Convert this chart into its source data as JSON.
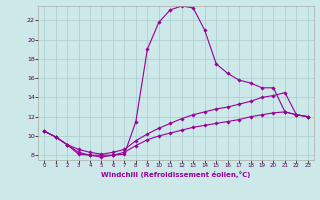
{
  "xlabel": "Windchill (Refroidissement éolien,°C)",
  "bg_color": "#cce8e8",
  "line_color": "#990099",
  "grid_color": "#aacccc",
  "xlim": [
    -0.5,
    23.5
  ],
  "ylim": [
    7.5,
    23.5
  ],
  "xticks": [
    0,
    1,
    2,
    3,
    4,
    5,
    6,
    7,
    8,
    9,
    10,
    11,
    12,
    13,
    14,
    15,
    16,
    17,
    18,
    19,
    20,
    21,
    22,
    23
  ],
  "yticks": [
    8,
    10,
    12,
    14,
    16,
    18,
    20,
    22
  ],
  "line1_x": [
    0,
    1,
    2,
    3,
    4,
    5,
    6,
    7,
    8,
    9,
    10,
    11,
    12,
    13,
    14,
    15,
    16,
    17,
    18,
    19,
    20,
    21,
    22,
    23
  ],
  "line1_y": [
    10.5,
    9.9,
    9.1,
    8.1,
    8.0,
    8.0,
    8.0,
    8.1,
    11.5,
    19.0,
    21.8,
    23.1,
    23.5,
    23.3,
    21.0,
    17.5,
    16.5,
    15.8,
    15.5,
    15.0,
    15.0,
    12.5,
    12.2,
    12.0
  ],
  "line2_x": [
    0,
    1,
    2,
    3,
    4,
    5,
    6,
    7,
    8,
    9,
    10,
    11,
    12,
    13,
    14,
    15,
    16,
    17,
    18,
    19,
    20,
    21,
    22,
    23
  ],
  "line2_y": [
    10.5,
    9.9,
    9.1,
    8.6,
    8.3,
    8.1,
    8.3,
    8.6,
    9.5,
    10.2,
    10.8,
    11.3,
    11.8,
    12.2,
    12.5,
    12.8,
    13.0,
    13.3,
    13.6,
    14.0,
    14.2,
    14.5,
    12.2,
    12.0
  ],
  "line3_x": [
    0,
    1,
    2,
    3,
    4,
    5,
    6,
    7,
    8,
    9,
    10,
    11,
    12,
    13,
    14,
    15,
    16,
    17,
    18,
    19,
    20,
    21,
    22,
    23
  ],
  "line3_y": [
    10.5,
    9.9,
    9.1,
    8.3,
    8.0,
    7.8,
    8.0,
    8.3,
    9.0,
    9.6,
    10.0,
    10.3,
    10.6,
    10.9,
    11.1,
    11.3,
    11.5,
    11.7,
    12.0,
    12.2,
    12.4,
    12.5,
    12.2,
    12.0
  ]
}
